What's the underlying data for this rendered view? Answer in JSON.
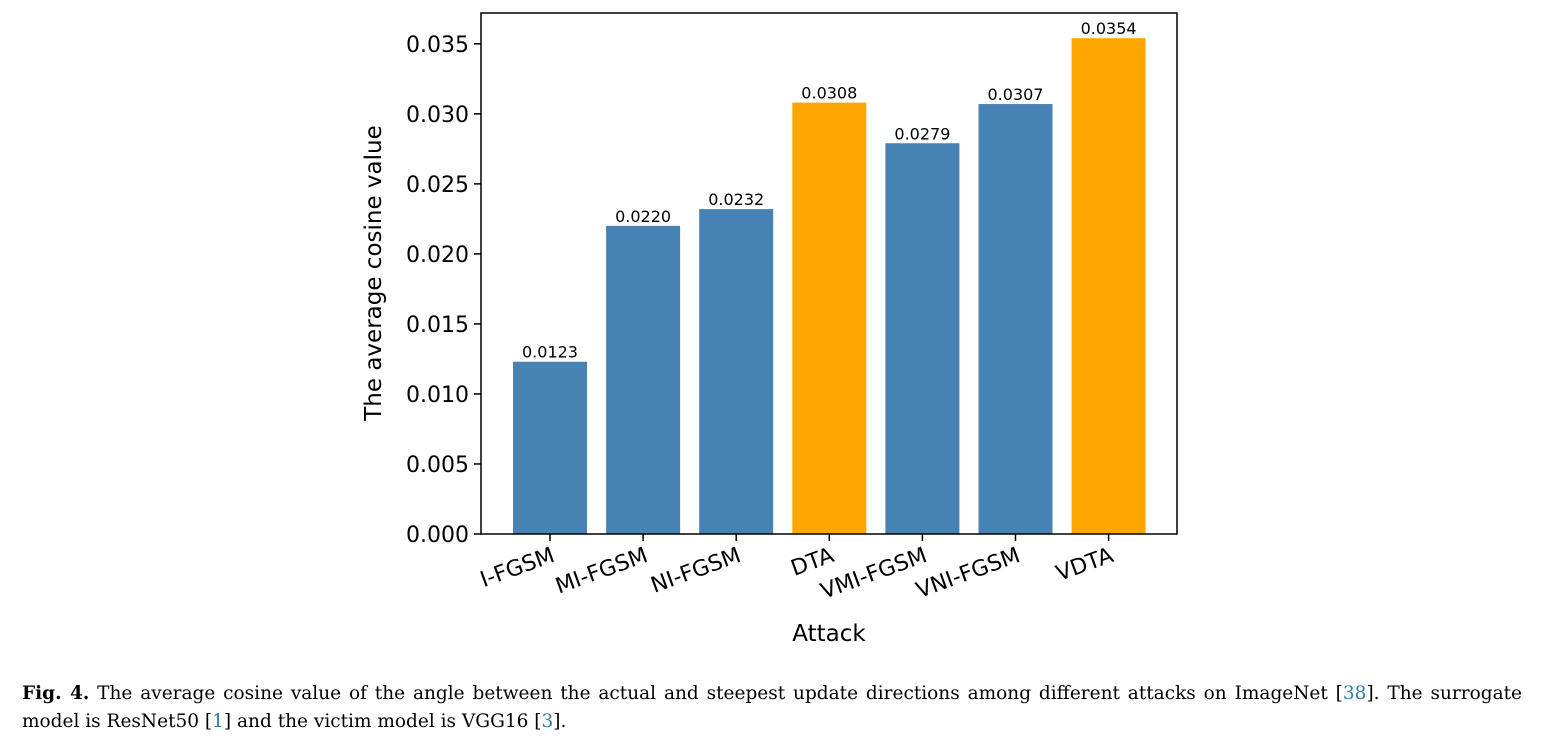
{
  "chart_data": {
    "type": "bar",
    "categories": [
      "I-FGSM",
      "MI-FGSM",
      "NI-FGSM",
      "DTA",
      "VMI-FGSM",
      "VNI-FGSM",
      "VDTA"
    ],
    "values": [
      0.0123,
      0.022,
      0.0232,
      0.0308,
      0.0279,
      0.0307,
      0.0354
    ],
    "data_labels": [
      "0.0123",
      "0.0220",
      "0.0232",
      "0.0308",
      "0.0279",
      "0.0307",
      "0.0354"
    ],
    "bar_colors": [
      "#4682b4",
      "#4682b4",
      "#4682b4",
      "#ffa500",
      "#4682b4",
      "#4682b4",
      "#ffa500"
    ],
    "title": "",
    "xlabel": "Attack",
    "ylabel": "The average cosine value",
    "ylim": [
      0,
      0.0372
    ],
    "yticks": [
      0.0,
      0.005,
      0.01,
      0.015,
      0.02,
      0.025,
      0.03,
      0.035
    ],
    "ytick_labels": [
      "0.000",
      "0.005",
      "0.010",
      "0.015",
      "0.020",
      "0.025",
      "0.030",
      "0.035"
    ],
    "xtick_rotation_deg": -20,
    "grid": false
  },
  "caption": {
    "fig_label": "Fig. 4.",
    "text_1": " The average cosine value of the angle between the actual and steepest update directions among different attacks on ImageNet [",
    "ref_1": "38",
    "text_2": "]. The surrogate model is ResNet50 [",
    "ref_2": "1",
    "text_3": "] and the victim model is VGG16 [",
    "ref_3": "3",
    "text_4": "]."
  },
  "colors": {
    "baseline_bar": "#4682b4",
    "proposed_bar": "#ffa500",
    "reference_link": "#2a7fa8"
  }
}
